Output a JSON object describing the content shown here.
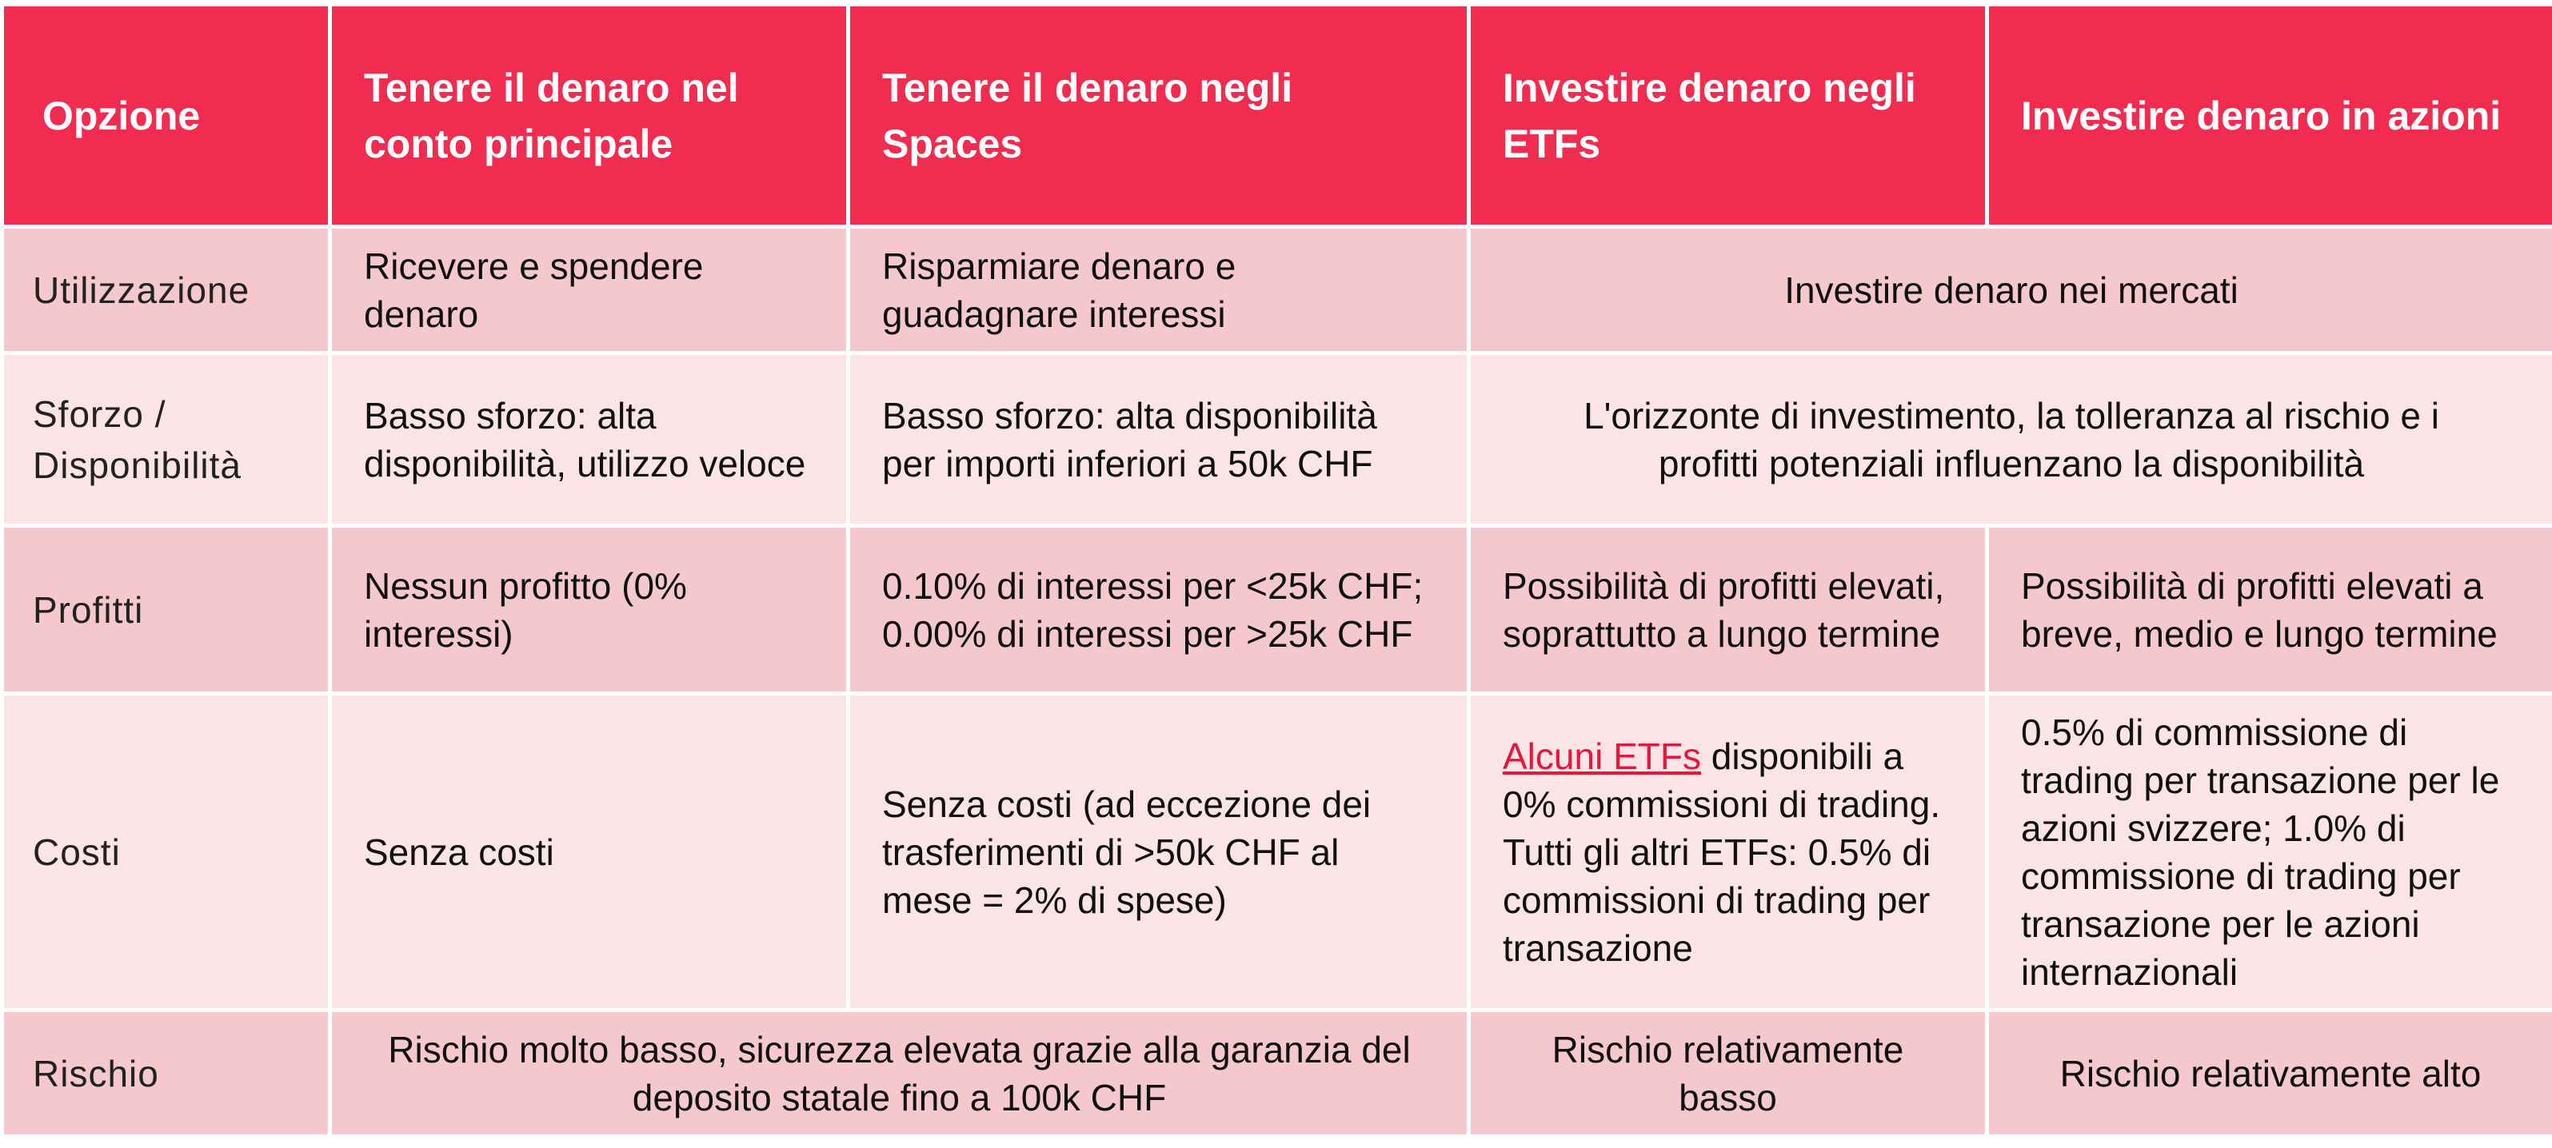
{
  "header": {
    "col0": "Opzione",
    "col1": "Tenere il denaro nel conto principale",
    "col2": "Tenere il denaro negli Spaces",
    "col3": "Investire denaro negli ETFs",
    "col4": "Investire denaro in azioni"
  },
  "rows": {
    "utilizzazione": {
      "label": "Utilizzazione",
      "main": "Ricevere e spendere denaro",
      "spaces": "Risparmiare denaro e guadagnare interessi",
      "markets": "Investire denaro nei mercati"
    },
    "sforzo": {
      "label": "Sforzo / Disponibilità",
      "main": "Basso sforzo: alta disponibilità, utilizzo veloce",
      "spaces": "Basso sforzo: alta disponibilità per importi inferiori a 50k CHF",
      "markets": "L'orizzonte di investimento, la tolleranza al rischio e i profitti potenziali influenzano la disponibilità"
    },
    "profitti": {
      "label": "Profitti",
      "main": "Nessun profitto (0% interessi)",
      "spaces": "0.10% di interessi per <25k CHF; 0.00% di interessi per >25k CHF",
      "etfs": "Possibilità di profitti elevati, soprattutto a lungo termine",
      "stocks": "Possibilità di profitti elevati a breve, medio e lungo termine"
    },
    "costi": {
      "label": "Costi",
      "main": "Senza costi",
      "spaces": "Senza costi (ad eccezione dei trasferimenti di >50k CHF al mese = 2% di spese)",
      "etfs_link": "Alcuni ETFs",
      "etfs_rest": " disponibili a 0% commissioni di trading. Tutti gli altri ETFs: 0.5% di commissioni di trading per transazione",
      "stocks": "0.5% di commissione di trading per transazione per le azioni svizzere; 1.0% di commissione di trading per transazione per le azioni internazionali"
    },
    "rischio": {
      "label": "Rischio",
      "main_spaces": "Rischio molto basso, sicurezza elevata grazie alla garanzia del deposito statale fino a 100k CHF",
      "etfs": "Rischio relativamente basso",
      "stocks": "Rischio relativamente alto"
    }
  },
  "colors": {
    "header_bg": "#f02d50",
    "row_dark": "#f5c8cd",
    "row_light": "#fae4e6",
    "link": "#e8163c"
  }
}
